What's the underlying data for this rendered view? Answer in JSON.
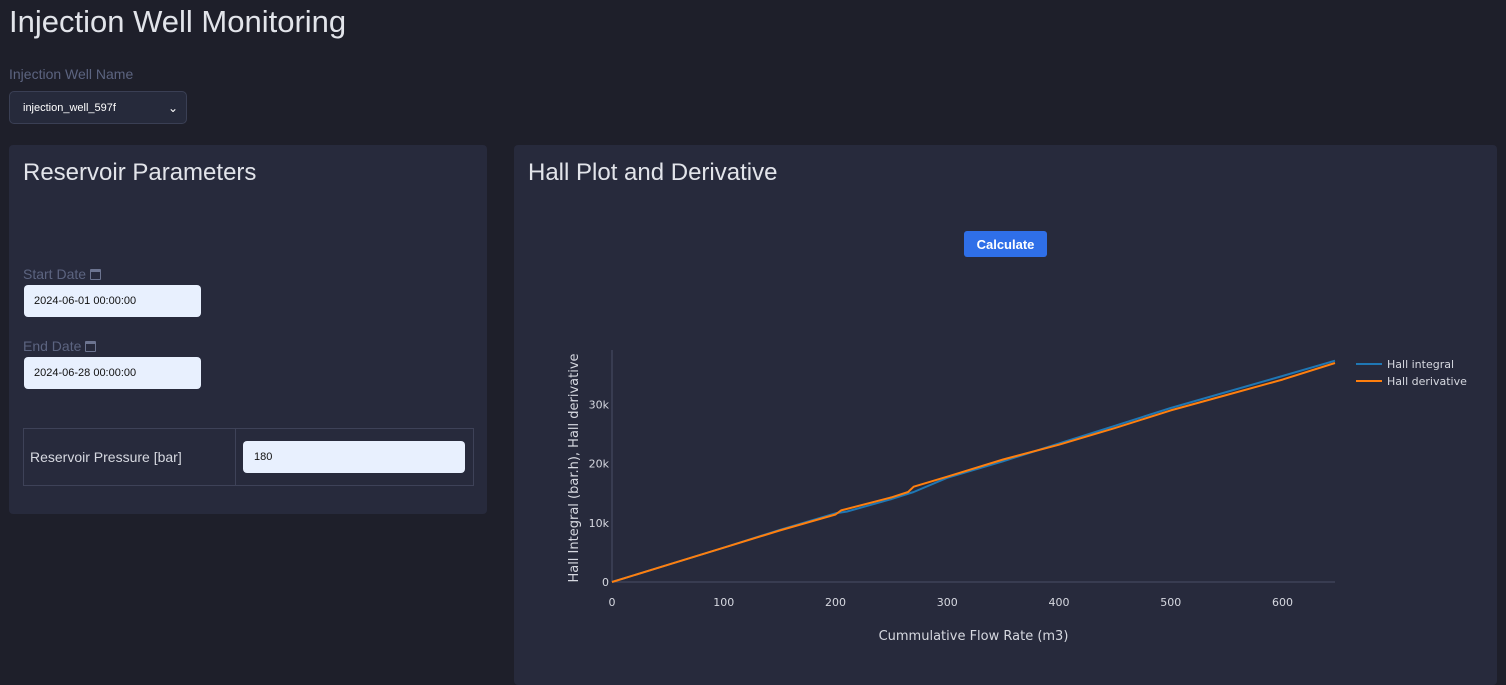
{
  "header": {
    "title": "Injection Well Monitoring"
  },
  "well_select": {
    "label": "Injection Well Name",
    "value": "injection_well_597f"
  },
  "reservoir_panel": {
    "title": "Reservoir Parameters",
    "start_date_label": "Start Date",
    "start_date_value": "2024-06-01 00:00:00",
    "end_date_label": "End Date",
    "end_date_value": "2024-06-28 00:00:00",
    "pressure_label": "Reservoir Pressure [bar]",
    "pressure_value": "180"
  },
  "hall_panel": {
    "title": "Hall Plot and Derivative",
    "calculate_label": "Calculate"
  },
  "colors": {
    "accent": "#2f6fe8",
    "integral": "#1f77b4",
    "derivative": "#ff7f0e"
  },
  "chart_data": {
    "type": "line",
    "xlabel": "Cummulative Flow Rate (m3)",
    "ylabel": "Hall Integral (bar.h), Hall derivative",
    "xlim": [
      0,
      647
    ],
    "ylim": [
      0,
      39200
    ],
    "xticks": [
      0,
      100,
      200,
      300,
      400,
      500,
      600
    ],
    "xtick_labels": [
      "0",
      "100",
      "200",
      "300",
      "400",
      "500",
      "600"
    ],
    "yticks": [
      0,
      10000,
      20000,
      30000
    ],
    "ytick_labels": [
      "0",
      "10k",
      "20k",
      "30k"
    ],
    "legend_position": "top-right",
    "series": [
      {
        "name": "Hall integral",
        "x": [
          0,
          50,
          100,
          150,
          200,
          210,
          250,
          270,
          300,
          350,
          400,
          450,
          500,
          550,
          600,
          647
        ],
        "y": [
          0,
          2900,
          5800,
          8800,
          11600,
          11900,
          14000,
          15200,
          17600,
          20400,
          23400,
          26400,
          29400,
          32100,
          34800,
          37400
        ]
      },
      {
        "name": "Hall derivative",
        "x": [
          0,
          50,
          100,
          150,
          200,
          205,
          250,
          265,
          270,
          300,
          350,
          400,
          450,
          500,
          550,
          600,
          647
        ],
        "y": [
          0,
          2900,
          5800,
          8700,
          11400,
          12100,
          14300,
          15200,
          16100,
          17800,
          20700,
          23200,
          26000,
          29000,
          31600,
          34200,
          37000
        ]
      }
    ]
  }
}
